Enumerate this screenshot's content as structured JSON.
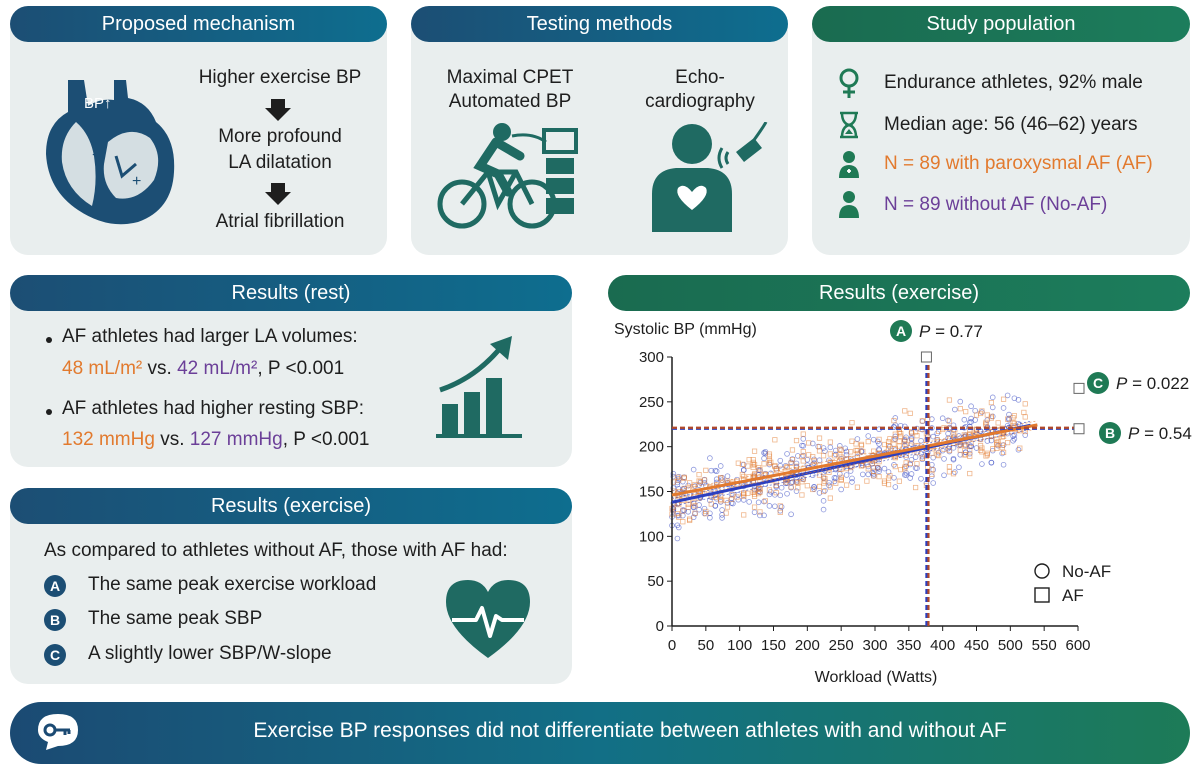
{
  "panels": {
    "mechanism": {
      "title": "Proposed mechanism",
      "heart_label": "BP↑",
      "step1": "Higher exercise BP",
      "step2a": "More profound",
      "step2b": "LA dilatation",
      "step3": "Atrial fibrillation"
    },
    "testing": {
      "title": "Testing methods",
      "method1a": "Maximal CPET",
      "method1b": "Automated BP",
      "method2a": "Echo-",
      "method2b": "cardiography"
    },
    "population": {
      "title": "Study population",
      "row1": "Endurance athletes, 92% male",
      "row2": "Median age: 56 (46–62) years",
      "row3": "N = 89 with paroxysmal AF (AF)",
      "row4": "N = 89 without AF (No-AF)"
    },
    "results_rest": {
      "title": "Results (rest)",
      "b1_line1": "AF athletes had larger LA volumes:",
      "b1_af": "48 mL/m²",
      "b1_vs": " vs. ",
      "b1_noaf": "42 mL/m²",
      "b1_p": ", P <0.001",
      "b2_line1": "AF athletes had higher resting SBP:",
      "b2_af": "132 mmHg",
      "b2_vs": " vs. ",
      "b2_noaf": "127 mmHg",
      "b2_p": ", P <0.001"
    },
    "results_exercise_text": {
      "title": "Results (exercise)",
      "intro": "As compared to athletes without AF, those with AF had:",
      "a": "The same peak exercise workload",
      "b": "The same peak SBP",
      "c": "A slightly lower SBP/W-slope"
    },
    "results_exercise_chart": {
      "title": "Results (exercise)"
    }
  },
  "badges": {
    "a": "A",
    "b": "B",
    "c": "C"
  },
  "annotations": {
    "a": "P = 0.77",
    "b": "P = 0.54",
    "c": "P = 0.022"
  },
  "conclusion": "Exercise BP responses did not differentiate between athletes with and without AF",
  "icons": {
    "female": "female-icon",
    "hourglass": "hourglass-icon",
    "person": "person-icon",
    "key": "key-speech-icon",
    "heart_ecg": "heart-ecg-icon",
    "growth": "growth-chart-icon",
    "cyclist": "cyclist-icon",
    "echo": "echocardiography-icon",
    "heart_anatomy": "heart-anatomy-icon"
  },
  "colors": {
    "navy": "#1c4e74",
    "green": "#1f7a55",
    "orange": "#e27a2e",
    "purple": "#6b3f98",
    "blue_line": "#2c3fbf"
  },
  "chart_data": {
    "type": "scatter",
    "xlabel": "Workload (Watts)",
    "ylabel": "Systolic BP (mmHg)",
    "xlim": [
      0,
      600
    ],
    "ylim": [
      0,
      300
    ],
    "xticks": [
      0,
      50,
      100,
      150,
      200,
      250,
      300,
      350,
      400,
      450,
      500,
      550,
      600
    ],
    "yticks": [
      0,
      50,
      100,
      150,
      200,
      250,
      300
    ],
    "grid": false,
    "legend_position": "bottom-right",
    "series": [
      {
        "name": "No-AF",
        "marker": "circle",
        "color": "#2c3fbf",
        "fit": {
          "intercept": 138,
          "slope": 0.162,
          "x": [
            0,
            530
          ]
        },
        "peak_workload": 376,
        "peak_sbp": 220
      },
      {
        "name": "AF",
        "marker": "square",
        "color": "#e27a2e",
        "fit": {
          "intercept": 146,
          "slope": 0.145,
          "x": [
            0,
            540
          ]
        },
        "peak_workload": 379,
        "peak_sbp": 220
      }
    ]
  }
}
